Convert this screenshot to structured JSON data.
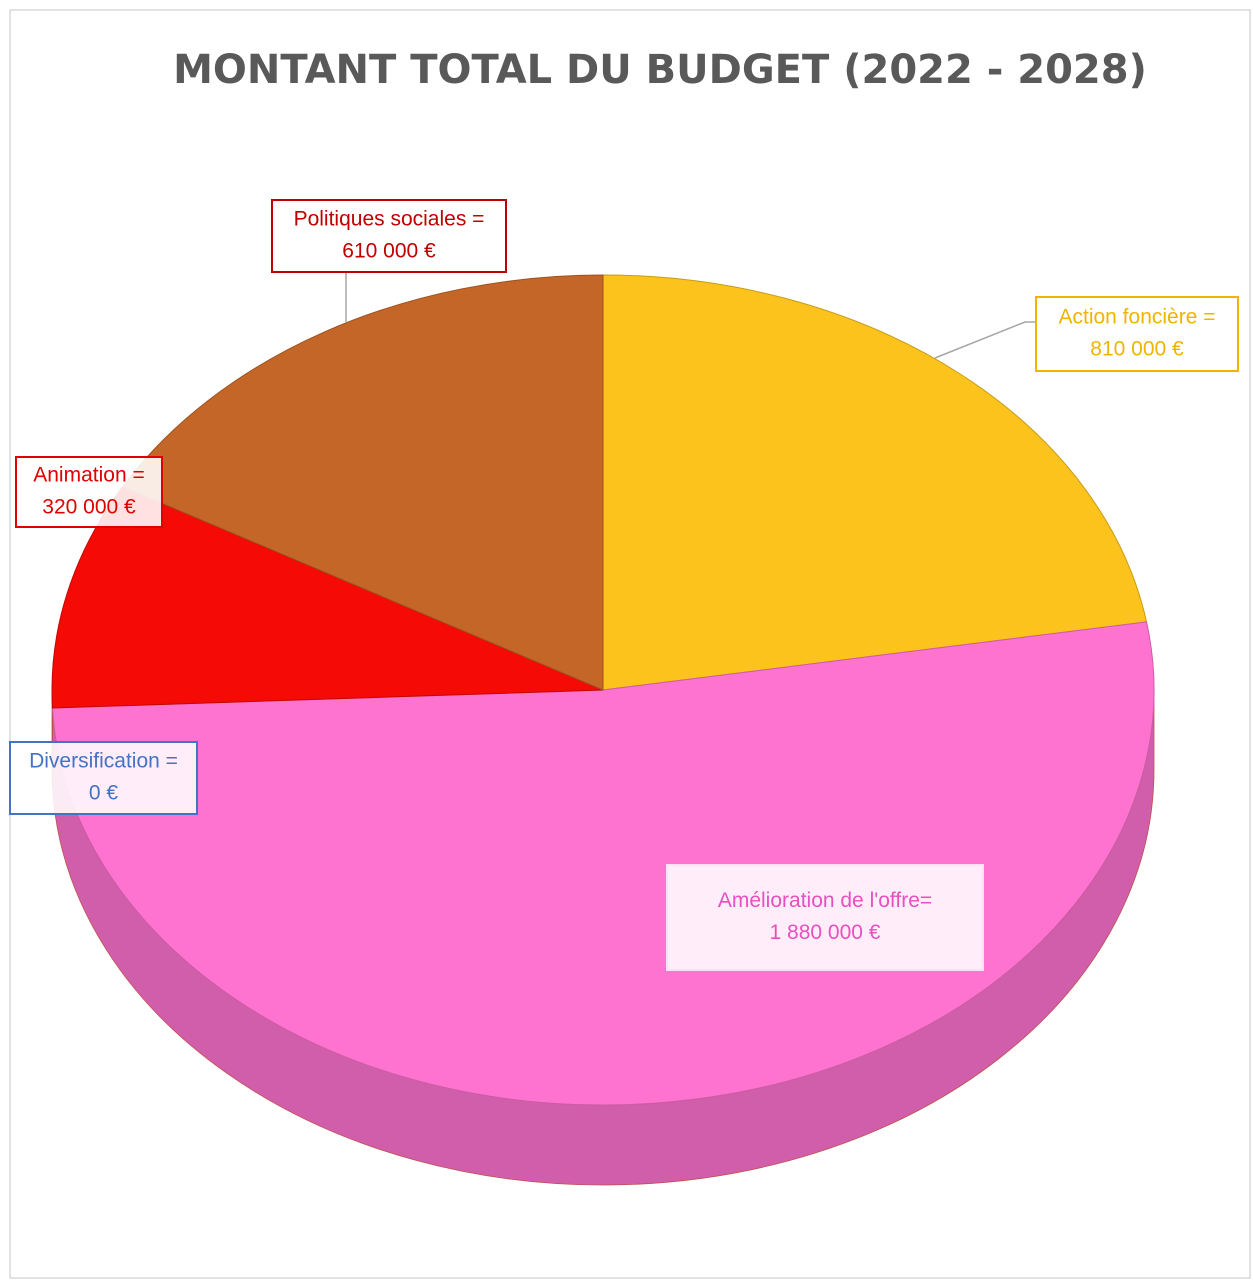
{
  "chart_data": {
    "type": "pie",
    "title": "MONTANT TOTAL DU BUDGET (2022 - 2028)",
    "categories": [
      "Action foncière =",
      "Amélioration de l'offre=",
      "Diversification =",
      "Animation =",
      "Politiques sociales ="
    ],
    "values": [
      810000,
      1880000,
      0,
      320000,
      610000
    ],
    "value_labels": [
      "810 000 €",
      "1 880 000 €",
      "0 €",
      "320 000 €",
      "610 000 €"
    ],
    "colors": [
      "#fbc31c",
      "#ff73d0",
      "#a99aa3",
      "#f50a05",
      "#c46628"
    ],
    "label_colors": [
      "#f0b400",
      "#e84fc0",
      "#4472c4",
      "#e00000",
      "#c00000"
    ]
  }
}
